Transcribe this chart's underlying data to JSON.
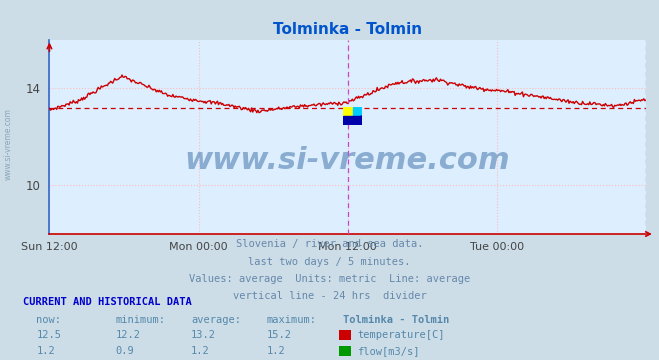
{
  "title": "Tolminka - Tolmin",
  "title_color": "#0055cc",
  "bg_color": "#ccdde8",
  "plot_bg_color": "#ddeeff",
  "grid_color": "#ffbbbb",
  "xlabel_ticks": [
    "Sun 12:00",
    "Mon 00:00",
    "Mon 12:00",
    "Tue 00:00"
  ],
  "xlabel_ticks_pos": [
    0.0,
    0.25,
    0.5,
    0.75
  ],
  "ylim_min": 8.0,
  "ylim_max": 16.0,
  "ytick_vals": [
    10,
    14
  ],
  "temp_avg": 13.2,
  "flow_avg": 1.2,
  "temp_color": "#cc0000",
  "flow_color": "#008800",
  "avg_line_color": "#cc0000",
  "divider_color": "#cc44cc",
  "watermark": "www.si-vreme.com",
  "watermark_color": "#4477aa",
  "watermark_alpha": 0.55,
  "watermark_fontsize": 22,
  "left_spine_color": "#3366cc",
  "bottom_spine_color": "#cc0000",
  "footnote_lines": [
    "Slovenia / river and sea data.",
    "last two days / 5 minutes.",
    "Values: average  Units: metric  Line: average",
    "vertical line - 24 hrs  divider"
  ],
  "footnote_color": "#6688aa",
  "section_label": "CURRENT AND HISTORICAL DATA",
  "section_color": "#0000cc",
  "table_headers": [
    "now:",
    "minimum:",
    "average:",
    "maximum:",
    "Tolminka - Tolmin"
  ],
  "temp_row": [
    "12.5",
    "12.2",
    "13.2",
    "15.2"
  ],
  "flow_row": [
    "1.2",
    "0.9",
    "1.2",
    "1.2"
  ],
  "temp_label": "temperature[C]",
  "flow_label": "flow[m3/s]",
  "temp_box_color": "#cc0000",
  "flow_box_color": "#009900",
  "table_color": "#5588aa",
  "side_label_color": "#7799aa"
}
